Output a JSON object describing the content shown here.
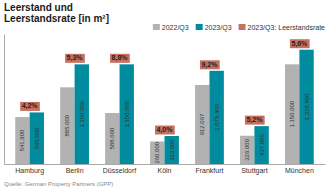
{
  "chart_data": {
    "type": "bar",
    "title": "Leerstand und\nLeerstandsrate [in m²]",
    "categories": [
      "Hamburg",
      "Berlin",
      "Düsseldorf",
      "Köln",
      "Frankfurt",
      "Stuttgart",
      "München"
    ],
    "series": [
      {
        "name": "2022/Q3",
        "color": "#b2b2b2",
        "values": [
          541900,
          885000,
          588600,
          260000,
          912067,
          326000,
          1150000
        ],
        "value_labels": [
          "541.900",
          "885.000",
          "588.600",
          "260.000",
          "912.067",
          "326.000",
          "1.150.000"
        ]
      },
      {
        "name": "2023/Q3",
        "color": "#008c9e",
        "values": [
          595000,
          1150000,
          1150000,
          323000,
          1075400,
          437000,
          1318800
        ],
        "value_labels": [
          "595.000",
          "1.150.000",
          "1.150.000",
          "323.000",
          "1.075.400",
          "437.000",
          "1.318.800"
        ]
      },
      {
        "name": "2023/Q3: Leerstandsrate",
        "color": "#c87060",
        "type": "label",
        "values": [
          4.2,
          5.3,
          8.8,
          4.0,
          9.2,
          5.2,
          5.6
        ],
        "value_labels": [
          "4,2%",
          "5,3%",
          "8,8%",
          "4,0%",
          "9,2%",
          "5,2%",
          "5,6%"
        ]
      }
    ],
    "annotations": [
      "Quelle: German Property Partners (GPP)"
    ],
    "ylim": [
      0,
      1500000
    ],
    "grid": false,
    "legend": "upper right",
    "data_labels": true,
    "tick_labels": "x"
  }
}
